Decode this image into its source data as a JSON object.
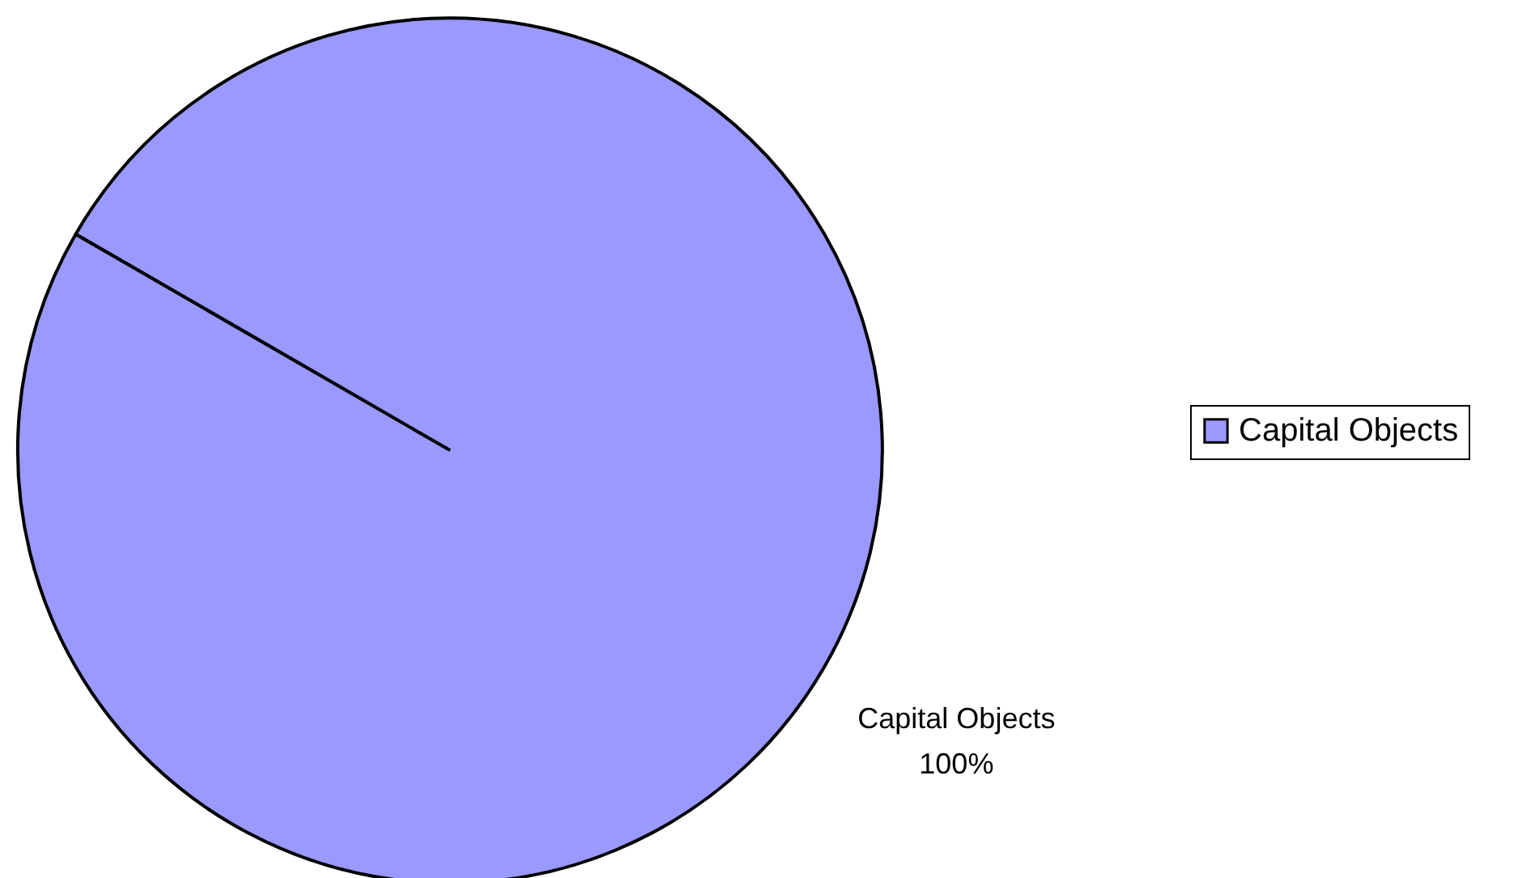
{
  "chart_data": {
    "type": "pie",
    "categories": [
      "Capital Objects"
    ],
    "values": [
      100
    ],
    "colors": [
      "#9999ff"
    ],
    "value_labels": [
      "100%"
    ],
    "legend": "right"
  }
}
